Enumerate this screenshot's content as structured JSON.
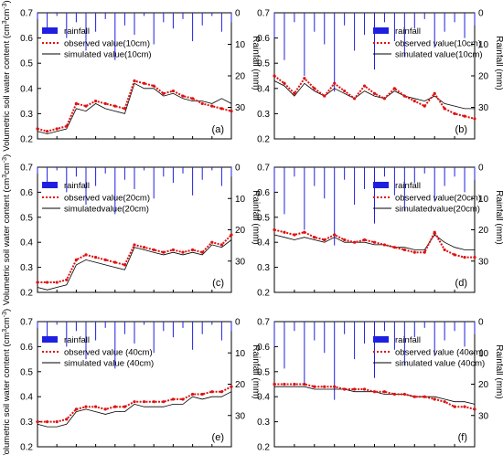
{
  "figure": {
    "ylabel_left": "Volumetric soil water content (cm",
    "ylabel_left_unit": "cm",
    "ylabel_right": "Rainfall (mm)"
  },
  "chart_data": [
    {
      "type": "line",
      "panel_label": "(a)",
      "ylim": [
        0.2,
        0.7
      ],
      "yticks": [
        "0.2",
        "0.3",
        "0.4",
        "0.5",
        "0.6",
        "0.7"
      ],
      "rain_ylim": [
        0,
        40
      ],
      "rain_ticks": [
        "0",
        "10",
        "20",
        "30"
      ],
      "legend": [
        "rainfall",
        "observed value(10cm)",
        "simulated value(10cm)"
      ],
      "x": [
        0,
        5,
        10,
        15,
        20,
        25,
        30,
        35,
        40,
        45,
        50,
        55,
        60,
        65,
        70,
        75,
        80,
        85,
        90,
        95,
        100
      ],
      "series": [
        {
          "name": "observed value(10cm)",
          "values": [
            0.24,
            0.23,
            0.24,
            0.25,
            0.34,
            0.33,
            0.35,
            0.34,
            0.33,
            0.32,
            0.43,
            0.42,
            0.41,
            0.38,
            0.39,
            0.37,
            0.36,
            0.34,
            0.33,
            0.32,
            0.31
          ]
        },
        {
          "name": "simulated value(10cm)",
          "values": [
            0.23,
            0.22,
            0.23,
            0.24,
            0.32,
            0.31,
            0.34,
            0.32,
            0.31,
            0.3,
            0.42,
            0.4,
            0.4,
            0.37,
            0.38,
            0.36,
            0.35,
            0.35,
            0.34,
            0.36,
            0.34
          ]
        }
      ],
      "rainfall": [
        2,
        5,
        1,
        8,
        3,
        12,
        6,
        2,
        15,
        4,
        7,
        1,
        10,
        3,
        5,
        2,
        9,
        4,
        1,
        6,
        3
      ]
    },
    {
      "type": "line",
      "panel_label": "(b)",
      "ylim": [
        0.2,
        0.7
      ],
      "yticks": [
        "0.2",
        "0.3",
        "0.4",
        "0.5",
        "0.6",
        "0.7"
      ],
      "rain_ylim": [
        0,
        40
      ],
      "rain_ticks": [
        "0",
        "10",
        "20",
        "30"
      ],
      "legend": [
        "rainfall",
        "observed value(10cm)",
        "simulated value(10cm)"
      ],
      "x": [
        0,
        5,
        10,
        15,
        20,
        25,
        30,
        35,
        40,
        45,
        50,
        55,
        60,
        65,
        70,
        75,
        80,
        85,
        90,
        95,
        100
      ],
      "series": [
        {
          "name": "observed value(10cm)",
          "values": [
            0.45,
            0.42,
            0.38,
            0.44,
            0.4,
            0.37,
            0.42,
            0.39,
            0.36,
            0.41,
            0.38,
            0.36,
            0.4,
            0.37,
            0.35,
            0.33,
            0.38,
            0.32,
            0.3,
            0.29,
            0.28
          ]
        },
        {
          "name": "simulated value(10cm)",
          "values": [
            0.43,
            0.41,
            0.37,
            0.42,
            0.39,
            0.37,
            0.4,
            0.38,
            0.36,
            0.39,
            0.37,
            0.36,
            0.39,
            0.37,
            0.36,
            0.35,
            0.37,
            0.34,
            0.33,
            0.32,
            0.32
          ]
        }
      ],
      "rainfall": [
        8,
        15,
        3,
        20,
        6,
        10,
        25,
        4,
        12,
        7,
        18,
        3,
        9,
        14,
        5,
        2,
        11,
        6,
        3,
        8,
        4
      ]
    },
    {
      "type": "line",
      "panel_label": "(c)",
      "ylim": [
        0.2,
        0.7
      ],
      "yticks": [
        "0.2",
        "0.3",
        "0.4",
        "0.5",
        "0.6",
        "0.7"
      ],
      "rain_ylim": [
        0,
        40
      ],
      "rain_ticks": [
        "0",
        "10",
        "20",
        "30"
      ],
      "legend": [
        "rainfall",
        "observed value(20cm)",
        "simulatedvalue(20cm)"
      ],
      "x": [
        0,
        5,
        10,
        15,
        20,
        25,
        30,
        35,
        40,
        45,
        50,
        55,
        60,
        65,
        70,
        75,
        80,
        85,
        90,
        95,
        100
      ],
      "series": [
        {
          "name": "observed value(20cm)",
          "values": [
            0.24,
            0.24,
            0.24,
            0.25,
            0.33,
            0.35,
            0.34,
            0.33,
            0.32,
            0.31,
            0.39,
            0.38,
            0.37,
            0.36,
            0.37,
            0.36,
            0.37,
            0.36,
            0.4,
            0.39,
            0.43
          ]
        },
        {
          "name": "simulatedvalue(20cm)",
          "values": [
            0.22,
            0.21,
            0.22,
            0.23,
            0.31,
            0.33,
            0.32,
            0.31,
            0.3,
            0.29,
            0.38,
            0.37,
            0.36,
            0.35,
            0.36,
            0.35,
            0.36,
            0.35,
            0.39,
            0.38,
            0.41
          ]
        }
      ],
      "rainfall": [
        2,
        5,
        1,
        8,
        3,
        12,
        6,
        2,
        15,
        4,
        7,
        1,
        10,
        3,
        5,
        2,
        9,
        4,
        1,
        6,
        3
      ]
    },
    {
      "type": "line",
      "panel_label": "(d)",
      "ylim": [
        0.2,
        0.7
      ],
      "yticks": [
        "0.2",
        "0.3",
        "0.4",
        "0.5",
        "0.6",
        "0.7"
      ],
      "rain_ylim": [
        0,
        40
      ],
      "rain_ticks": [
        "0",
        "10",
        "20",
        "30"
      ],
      "legend": [
        "rainfall",
        "observed value(20cm)",
        "simulatedvalue(20cm)"
      ],
      "x": [
        0,
        5,
        10,
        15,
        20,
        25,
        30,
        35,
        40,
        45,
        50,
        55,
        60,
        65,
        70,
        75,
        80,
        85,
        90,
        95,
        100
      ],
      "series": [
        {
          "name": "observed value(20cm)",
          "values": [
            0.45,
            0.44,
            0.43,
            0.44,
            0.42,
            0.41,
            0.43,
            0.41,
            0.4,
            0.41,
            0.4,
            0.39,
            0.38,
            0.37,
            0.36,
            0.36,
            0.44,
            0.37,
            0.35,
            0.34,
            0.34
          ]
        },
        {
          "name": "simulatedvalue(20cm)",
          "values": [
            0.43,
            0.42,
            0.41,
            0.42,
            0.41,
            0.4,
            0.42,
            0.4,
            0.4,
            0.4,
            0.39,
            0.39,
            0.38,
            0.38,
            0.37,
            0.37,
            0.43,
            0.4,
            0.38,
            0.37,
            0.37
          ]
        }
      ],
      "rainfall": [
        8,
        15,
        3,
        20,
        6,
        10,
        25,
        4,
        12,
        7,
        18,
        3,
        9,
        14,
        5,
        2,
        11,
        6,
        3,
        8,
        4
      ]
    },
    {
      "type": "line",
      "panel_label": "(e)",
      "ylim": [
        0.2,
        0.7
      ],
      "yticks": [
        "0.2",
        "0.3",
        "0.4",
        "0.5",
        "0.6",
        "0.7"
      ],
      "rain_ylim": [
        0,
        40
      ],
      "rain_ticks": [
        "0",
        "10",
        "20",
        "30"
      ],
      "legend": [
        "rainfall",
        "observed value (40cm)",
        "simulated value (40cm)"
      ],
      "x": [
        0,
        5,
        10,
        15,
        20,
        25,
        30,
        35,
        40,
        45,
        50,
        55,
        60,
        65,
        70,
        75,
        80,
        85,
        90,
        95,
        100
      ],
      "series": [
        {
          "name": "observed value (40cm)",
          "values": [
            0.3,
            0.3,
            0.3,
            0.31,
            0.35,
            0.36,
            0.36,
            0.35,
            0.36,
            0.36,
            0.38,
            0.38,
            0.38,
            0.38,
            0.39,
            0.39,
            0.41,
            0.41,
            0.42,
            0.42,
            0.44
          ]
        },
        {
          "name": "simulated value (40cm)",
          "values": [
            0.29,
            0.28,
            0.28,
            0.29,
            0.34,
            0.35,
            0.34,
            0.33,
            0.34,
            0.34,
            0.37,
            0.36,
            0.36,
            0.36,
            0.37,
            0.37,
            0.4,
            0.39,
            0.4,
            0.4,
            0.42
          ]
        }
      ],
      "rainfall": [
        2,
        5,
        1,
        8,
        3,
        12,
        6,
        2,
        15,
        4,
        7,
        1,
        10,
        3,
        5,
        2,
        9,
        4,
        1,
        6,
        3
      ]
    },
    {
      "type": "line",
      "panel_label": "(f)",
      "ylim": [
        0.2,
        0.7
      ],
      "yticks": [
        "0.2",
        "0.3",
        "0.4",
        "0.5",
        "0.6",
        "0.7"
      ],
      "rain_ylim": [
        0,
        40
      ],
      "rain_ticks": [
        "0",
        "10",
        "20",
        "30"
      ],
      "legend": [
        "rainfall",
        "observed value (40cm)",
        "simulated value (40cm)"
      ],
      "x": [
        0,
        5,
        10,
        15,
        20,
        25,
        30,
        35,
        40,
        45,
        50,
        55,
        60,
        65,
        70,
        75,
        80,
        85,
        90,
        95,
        100
      ],
      "series": [
        {
          "name": "observed value (40cm)",
          "values": [
            0.45,
            0.45,
            0.45,
            0.45,
            0.44,
            0.44,
            0.44,
            0.43,
            0.43,
            0.43,
            0.42,
            0.42,
            0.41,
            0.41,
            0.4,
            0.4,
            0.39,
            0.38,
            0.36,
            0.36,
            0.35
          ]
        },
        {
          "name": "simulated value (40cm)",
          "values": [
            0.44,
            0.44,
            0.44,
            0.44,
            0.43,
            0.43,
            0.43,
            0.43,
            0.42,
            0.42,
            0.42,
            0.41,
            0.41,
            0.41,
            0.4,
            0.4,
            0.4,
            0.39,
            0.38,
            0.38,
            0.37
          ]
        }
      ],
      "rainfall": [
        8,
        15,
        3,
        20,
        6,
        10,
        25,
        4,
        12,
        7,
        18,
        3,
        9,
        14,
        5,
        2,
        11,
        6,
        3,
        8,
        4
      ]
    }
  ]
}
